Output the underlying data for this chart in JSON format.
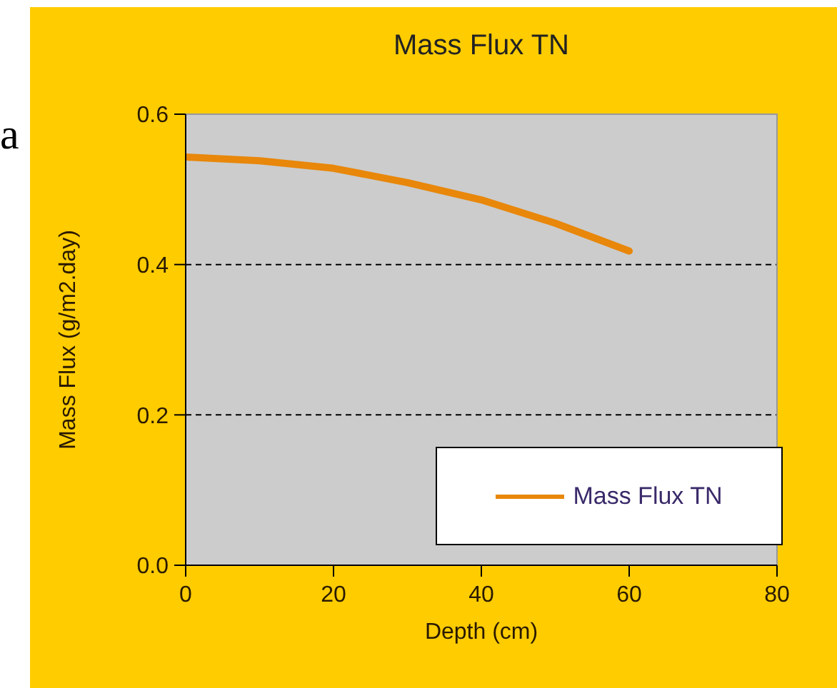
{
  "chart_data": {
    "type": "line",
    "title": "Mass Flux TN",
    "xlabel": "Depth (cm)",
    "ylabel": "Mass Flux (g/m2.day)",
    "annotations": [
      "a"
    ],
    "x": [
      0,
      10,
      20,
      30,
      40,
      50,
      60
    ],
    "series": [
      {
        "name": "Mass Flux TN",
        "color": "#e8870a",
        "values": [
          0.543,
          0.538,
          0.528,
          0.509,
          0.486,
          0.455,
          0.418
        ]
      }
    ],
    "xlim": [
      0,
      80
    ],
    "xticks": [
      0,
      20,
      40,
      60,
      80
    ],
    "ylim": [
      0,
      0.6
    ],
    "yticks": [
      {
        "value": 0,
        "label": "0.0"
      },
      {
        "value": 0.2,
        "label": "0.2"
      },
      {
        "value": 0.4,
        "label": "0.4"
      },
      {
        "value": 0.6,
        "label": "0.6"
      }
    ],
    "grid": "y",
    "legend": "bottom right",
    "marker": "none",
    "line_style": "solid"
  }
}
